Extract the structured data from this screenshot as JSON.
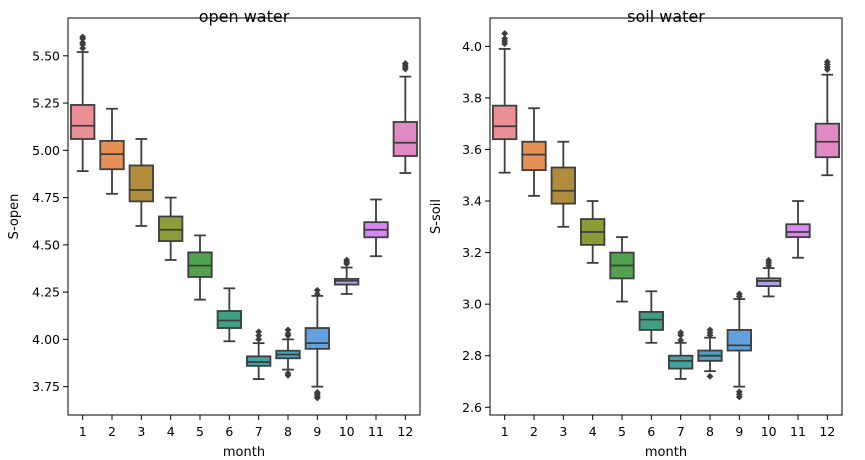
{
  "chart_data": [
    {
      "type": "box",
      "title": "open water",
      "xlabel": "month",
      "ylabel": "S-open",
      "ylim": [
        3.6,
        5.7
      ],
      "yticks": [
        "3.75",
        "4.00",
        "4.25",
        "4.50",
        "4.75",
        "5.00",
        "5.25",
        "5.50"
      ],
      "categories": [
        "1",
        "2",
        "3",
        "4",
        "5",
        "6",
        "7",
        "8",
        "9",
        "10",
        "11",
        "12"
      ],
      "colors": [
        "#EA8F95",
        "#E69058",
        "#B08D3D",
        "#8D9C3A",
        "#52A24F",
        "#3E9F84",
        "#43A4A3",
        "#4DA2BD",
        "#62A1E0",
        "#ACA4E2",
        "#DA88F1",
        "#E189C3"
      ],
      "boxes": [
        {
          "month": "1",
          "low": 4.89,
          "q1": 5.06,
          "median": 5.13,
          "q3": 5.24,
          "high": 5.52,
          "outliers": [
            5.54,
            5.56,
            5.57,
            5.59,
            5.6
          ]
        },
        {
          "month": "2",
          "low": 4.77,
          "q1": 4.9,
          "median": 4.98,
          "q3": 5.05,
          "high": 5.22,
          "outliers": []
        },
        {
          "month": "3",
          "low": 4.6,
          "q1": 4.73,
          "median": 4.79,
          "q3": 4.92,
          "high": 5.06,
          "outliers": []
        },
        {
          "month": "4",
          "low": 4.42,
          "q1": 4.52,
          "median": 4.58,
          "q3": 4.65,
          "high": 4.75,
          "outliers": []
        },
        {
          "month": "5",
          "low": 4.21,
          "q1": 4.33,
          "median": 4.39,
          "q3": 4.46,
          "high": 4.55,
          "outliers": []
        },
        {
          "month": "6",
          "low": 3.99,
          "q1": 4.06,
          "median": 4.1,
          "q3": 4.15,
          "high": 4.27,
          "outliers": []
        },
        {
          "month": "7",
          "low": 3.79,
          "q1": 3.86,
          "median": 3.88,
          "q3": 3.91,
          "high": 3.98,
          "outliers": [
            4.0,
            4.02,
            4.04
          ]
        },
        {
          "month": "8",
          "low": 3.84,
          "q1": 3.9,
          "median": 3.92,
          "q3": 3.94,
          "high": 4.0,
          "outliers": [
            3.81,
            3.82,
            4.02,
            4.03,
            4.05
          ]
        },
        {
          "month": "9",
          "low": 3.75,
          "q1": 3.95,
          "median": 3.98,
          "q3": 4.06,
          "high": 4.23,
          "outliers": [
            3.69,
            3.7,
            3.71,
            3.72,
            4.24,
            4.26
          ]
        },
        {
          "month": "10",
          "low": 4.24,
          "q1": 4.29,
          "median": 4.31,
          "q3": 4.32,
          "high": 4.38,
          "outliers": [
            4.4,
            4.41,
            4.42
          ]
        },
        {
          "month": "11",
          "low": 4.44,
          "q1": 4.54,
          "median": 4.58,
          "q3": 4.62,
          "high": 4.74,
          "outliers": []
        },
        {
          "month": "12",
          "low": 4.88,
          "q1": 4.97,
          "median": 5.04,
          "q3": 5.15,
          "high": 5.39,
          "outliers": [
            5.43,
            5.44,
            5.45,
            5.46
          ]
        }
      ]
    },
    {
      "type": "box",
      "title": "soil water",
      "xlabel": "month",
      "ylabel": "S-soil",
      "ylim": [
        2.57,
        4.11
      ],
      "yticks": [
        "2.6",
        "2.8",
        "3.0",
        "3.2",
        "3.4",
        "3.6",
        "3.8",
        "4.0"
      ],
      "categories": [
        "1",
        "2",
        "3",
        "4",
        "5",
        "6",
        "7",
        "8",
        "9",
        "10",
        "11",
        "12"
      ],
      "colors": [
        "#EA8F95",
        "#E69058",
        "#B08D3D",
        "#8D9C3A",
        "#52A24F",
        "#3E9F84",
        "#43A4A3",
        "#4DA2BD",
        "#62A1E0",
        "#ACA4E2",
        "#DA88F1",
        "#E189C3"
      ],
      "boxes": [
        {
          "month": "1",
          "low": 3.51,
          "q1": 3.64,
          "median": 3.69,
          "q3": 3.77,
          "high": 3.99,
          "outliers": [
            4.01,
            4.02,
            4.03,
            4.05
          ]
        },
        {
          "month": "2",
          "low": 3.42,
          "q1": 3.52,
          "median": 3.58,
          "q3": 3.63,
          "high": 3.76,
          "outliers": []
        },
        {
          "month": "3",
          "low": 3.3,
          "q1": 3.39,
          "median": 3.44,
          "q3": 3.53,
          "high": 3.63,
          "outliers": []
        },
        {
          "month": "4",
          "low": 3.16,
          "q1": 3.23,
          "median": 3.28,
          "q3": 3.33,
          "high": 3.4,
          "outliers": []
        },
        {
          "month": "5",
          "low": 3.01,
          "q1": 3.1,
          "median": 3.15,
          "q3": 3.2,
          "high": 3.26,
          "outliers": []
        },
        {
          "month": "6",
          "low": 2.85,
          "q1": 2.9,
          "median": 2.94,
          "q3": 2.97,
          "high": 3.05,
          "outliers": []
        },
        {
          "month": "7",
          "low": 2.71,
          "q1": 2.75,
          "median": 2.78,
          "q3": 2.8,
          "high": 2.85,
          "outliers": [
            2.86,
            2.88,
            2.89
          ]
        },
        {
          "month": "8",
          "low": 2.74,
          "q1": 2.78,
          "median": 2.8,
          "q3": 2.82,
          "high": 2.87,
          "outliers": [
            2.72,
            2.88,
            2.89,
            2.9
          ]
        },
        {
          "month": "9",
          "low": 2.68,
          "q1": 2.82,
          "median": 2.84,
          "q3": 2.9,
          "high": 3.02,
          "outliers": [
            2.64,
            2.65,
            2.66,
            3.03,
            3.04
          ]
        },
        {
          "month": "10",
          "low": 3.03,
          "q1": 3.07,
          "median": 3.09,
          "q3": 3.1,
          "high": 3.14,
          "outliers": [
            3.15,
            3.16,
            3.17
          ]
        },
        {
          "month": "11",
          "low": 3.18,
          "q1": 3.26,
          "median": 3.28,
          "q3": 3.31,
          "high": 3.4,
          "outliers": []
        },
        {
          "month": "12",
          "low": 3.5,
          "q1": 3.57,
          "median": 3.63,
          "q3": 3.7,
          "high": 3.89,
          "outliers": [
            3.91,
            3.92,
            3.93,
            3.94
          ]
        }
      ]
    }
  ]
}
